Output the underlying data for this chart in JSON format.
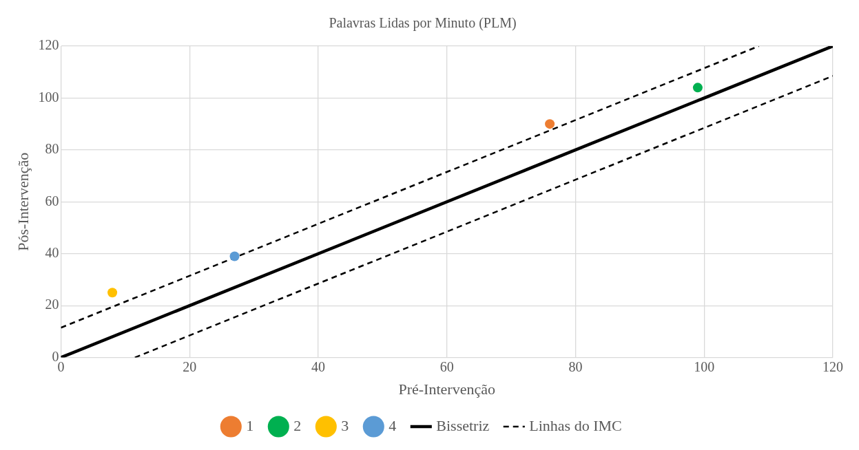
{
  "chart_data": {
    "type": "scatter",
    "title": "Palavras Lidas por Minuto (PLM)",
    "xlabel": "Pré-Intervenção",
    "ylabel": "Pós-Intervenção",
    "xlim": [
      0,
      120
    ],
    "xticks": [
      0,
      20,
      40,
      60,
      80,
      100,
      120
    ],
    "ylim": [
      0,
      120
    ],
    "yticks": [
      0,
      20,
      40,
      60,
      80,
      100,
      120
    ],
    "grid": true,
    "legend": "bottom",
    "marker": "circle",
    "series": [
      {
        "name": "1",
        "color": "#ed7d31",
        "x": [
          76
        ],
        "values": [
          90
        ]
      },
      {
        "name": "2",
        "color": "#00b050",
        "x": [
          99
        ],
        "values": [
          104
        ]
      },
      {
        "name": "3",
        "color": "#ffc000",
        "x": [
          8
        ],
        "values": [
          25
        ]
      },
      {
        "name": "4",
        "color": "#5b9bd5",
        "x": [
          27
        ],
        "values": [
          39
        ]
      },
      {
        "name": "Bissetriz",
        "type": "line",
        "color": "#000000",
        "line_style": "solid",
        "marker": "none",
        "x": [
          0,
          120
        ],
        "values": [
          0,
          120
        ]
      },
      {
        "name": "Linhas do IMC",
        "type": "line",
        "color": "#000000",
        "line_style": "dashed",
        "marker": "none",
        "x": [
          0,
          108.5
        ],
        "values": [
          11.5,
          120
        ]
      },
      {
        "type": "line",
        "color": "#000000",
        "line_style": "dashed",
        "marker": "none",
        "x": [
          11.5,
          120
        ],
        "values": [
          0,
          108.5
        ]
      }
    ]
  }
}
